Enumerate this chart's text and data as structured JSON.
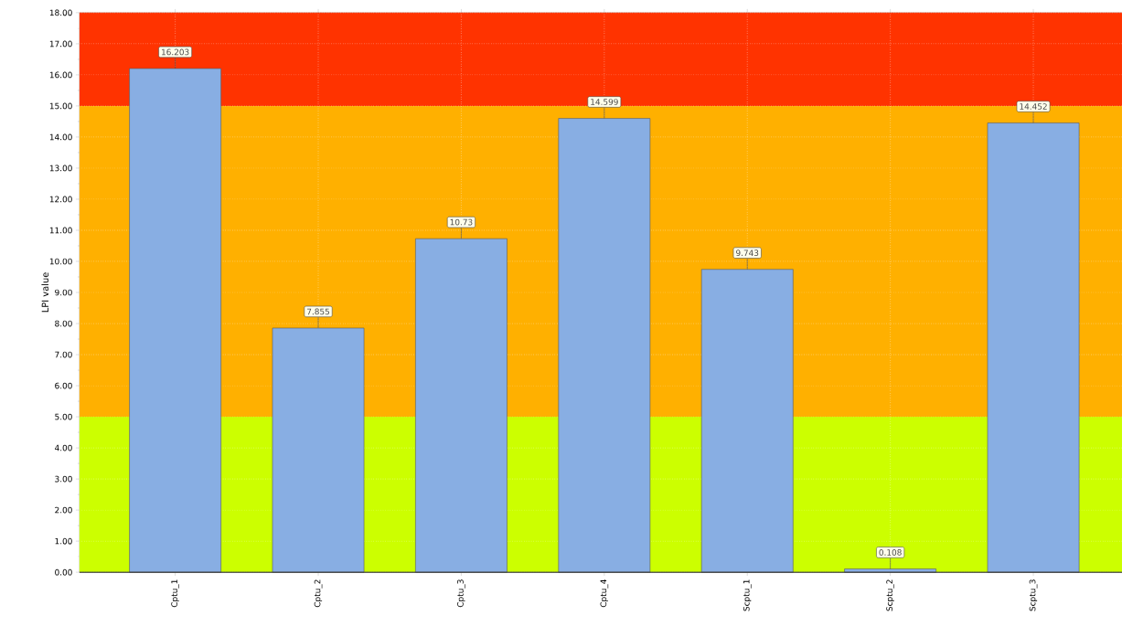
{
  "chart_data": {
    "type": "bar",
    "ylabel": "LPI value",
    "categories": [
      "Cptu_1",
      "Cptu_2",
      "Cptu_3",
      "Cptu_4",
      "Scptu_1",
      "Scptu_2",
      "Scptu_3"
    ],
    "values": [
      16.203,
      7.855,
      10.73,
      14.599,
      9.743,
      0.108,
      14.452
    ],
    "color": "#88aee3",
    "data_labels": true,
    "grid": true,
    "ylim": [
      0,
      18
    ],
    "yticks": [
      {
        "value": 0,
        "label": "0.00"
      },
      {
        "value": 1,
        "label": "1.00"
      },
      {
        "value": 2,
        "label": "2.00"
      },
      {
        "value": 3,
        "label": "3.00"
      },
      {
        "value": 4,
        "label": "4.00"
      },
      {
        "value": 5,
        "label": "5.00"
      },
      {
        "value": 6,
        "label": "6.00"
      },
      {
        "value": 7,
        "label": "7.00"
      },
      {
        "value": 8,
        "label": "8.00"
      },
      {
        "value": 9,
        "label": "9.00"
      },
      {
        "value": 10,
        "label": "10.00"
      },
      {
        "value": 11,
        "label": "11.00"
      },
      {
        "value": 12,
        "label": "12.00"
      },
      {
        "value": 13,
        "label": "13.00"
      },
      {
        "value": 14,
        "label": "14.00"
      },
      {
        "value": 15,
        "label": "15.00"
      },
      {
        "value": 16,
        "label": "16.00"
      },
      {
        "value": 17,
        "label": "17.00"
      },
      {
        "value": 18,
        "label": "18.00"
      }
    ],
    "bands": [
      {
        "axis": "y",
        "from": 0,
        "to": 5,
        "color": "#ccff00"
      },
      {
        "axis": "y",
        "from": 5,
        "to": 15,
        "color": "#ffb000"
      },
      {
        "axis": "y",
        "from": 15,
        "to": 18,
        "color": "#ff3300"
      }
    ]
  }
}
